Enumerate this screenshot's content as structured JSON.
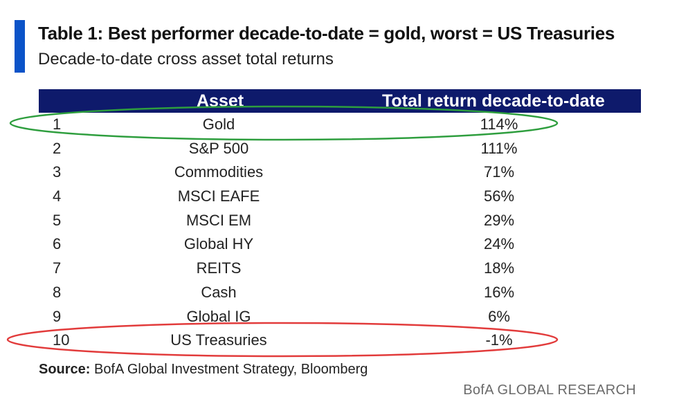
{
  "header": {
    "title": "Table 1: Best performer decade-to-date = gold, worst = US Treasuries",
    "subtitle": "Decade-to-date cross asset total returns"
  },
  "table": {
    "columns": [
      "Asset",
      "Total return decade-to-date"
    ],
    "rows": [
      {
        "rank": "1",
        "asset": "Gold",
        "return": "114%"
      },
      {
        "rank": "2",
        "asset": "S&P 500",
        "return": "111%"
      },
      {
        "rank": "3",
        "asset": "Commodities",
        "return": "71%"
      },
      {
        "rank": "4",
        "asset": "MSCI EAFE",
        "return": "56%"
      },
      {
        "rank": "5",
        "asset": "MSCI EM",
        "return": "29%"
      },
      {
        "rank": "6",
        "asset": "Global HY",
        "return": "24%"
      },
      {
        "rank": "7",
        "asset": "REITS",
        "return": "18%"
      },
      {
        "rank": "8",
        "asset": "Cash",
        "return": "16%"
      },
      {
        "rank": "9",
        "asset": "Global IG",
        "return": "6%"
      },
      {
        "rank": "10",
        "asset": "US Treasuries",
        "return": "-1%"
      }
    ]
  },
  "chart_data": {
    "type": "table",
    "title": "Table 1: Best performer decade-to-date = gold, worst = US Treasuries",
    "subtitle": "Decade-to-date cross asset total returns",
    "columns": [
      "Asset",
      "Total return decade-to-date"
    ],
    "categories": [
      "Gold",
      "S&P 500",
      "Commodities",
      "MSCI EAFE",
      "MSCI EM",
      "Global HY",
      "REITS",
      "Cash",
      "Global IG",
      "US Treasuries"
    ],
    "values": [
      114,
      111,
      71,
      56,
      29,
      24,
      18,
      16,
      6,
      -1
    ],
    "highlights": [
      {
        "row": "Gold",
        "color": "#2e9e3e"
      },
      {
        "row": "US Treasuries",
        "color": "#e23b3b"
      }
    ]
  },
  "source": {
    "label": "Source:",
    "text": " BofA Global Investment Strategy, Bloomberg"
  },
  "footer": "BofA GLOBAL RESEARCH",
  "colors": {
    "accent": "#0b53c8",
    "header_bg": "#0e1a6b",
    "best_highlight": "#2e9e3e",
    "worst_highlight": "#e23b3b"
  }
}
